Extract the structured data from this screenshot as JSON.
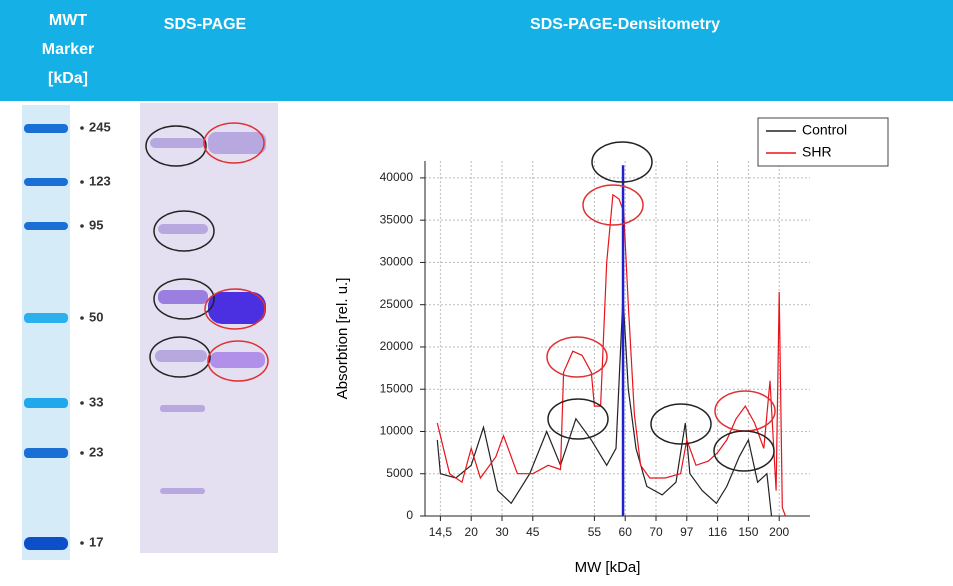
{
  "header": {
    "marker_lines": [
      "MWT",
      "Marker",
      "[kDa]"
    ],
    "gel": "SDS-PAGE",
    "densitometry": "SDS-PAGE-Densitometry"
  },
  "marker_labels": [
    "245",
    "123",
    "95",
    "50",
    "33",
    "23",
    "17"
  ],
  "chart_data": {
    "type": "line",
    "xlabel": "MW [kDa]",
    "ylabel": "Absorbtion [rel. u.]",
    "xlim": [
      -0.5,
      12
    ],
    "ylim": [
      0,
      42000
    ],
    "xticks": [
      {
        "value": 0,
        "label": "14,5"
      },
      {
        "value": 1,
        "label": "20"
      },
      {
        "value": 2,
        "label": "30"
      },
      {
        "value": 3,
        "label": "45"
      },
      {
        "value": 5,
        "label": "55"
      },
      {
        "value": 6,
        "label": "60"
      },
      {
        "value": 7,
        "label": "70"
      },
      {
        "value": 8,
        "label": "97"
      },
      {
        "value": 9,
        "label": "116"
      },
      {
        "value": 10,
        "label": "150"
      },
      {
        "value": 11,
        "label": "200"
      }
    ],
    "yticks": [
      0,
      5000,
      10000,
      15000,
      20000,
      25000,
      30000,
      35000,
      40000
    ],
    "grid": true,
    "legend": "top-right",
    "marker_line": {
      "x": 5.93,
      "ylim": [
        0,
        41500
      ],
      "color": "#2222cc"
    },
    "series": [
      {
        "name": "Control",
        "color": "#222222",
        "x": [
          -0.1,
          0,
          0.5,
          1.0,
          1.4,
          1.86,
          2.3,
          2.9,
          3.45,
          3.9,
          4.4,
          4.9,
          5.4,
          5.7,
          5.93,
          6.1,
          6.35,
          6.7,
          7.2,
          7.65,
          7.95,
          8.1,
          8.5,
          8.96,
          9.3,
          9.7,
          10.0,
          10.3,
          10.6,
          10.75
        ],
        "values": [
          9000,
          5000,
          4500,
          6000,
          10500,
          3000,
          1500,
          5000,
          10000,
          6000,
          11500,
          9000,
          6000,
          8000,
          26000,
          15000,
          8000,
          3500,
          2500,
          4000,
          11000,
          5000,
          3000,
          1500,
          3500,
          7000,
          9000,
          4000,
          5000,
          0
        ]
      },
      {
        "name": "SHR",
        "color": "#e8141c",
        "x": [
          -0.1,
          0.3,
          0.7,
          1.0,
          1.3,
          1.8,
          2.05,
          2.5,
          3.0,
          3.5,
          3.9,
          4.0,
          4.3,
          4.6,
          4.9,
          5.0,
          5.2,
          5.4,
          5.6,
          5.8,
          5.95,
          6.1,
          6.3,
          6.5,
          6.8,
          7.3,
          7.8,
          8.0,
          8.3,
          8.7,
          9.0,
          9.3,
          9.6,
          9.9,
          10.2,
          10.5,
          10.7,
          10.9,
          11.0,
          11.1,
          11.2
        ],
        "values": [
          11000,
          5000,
          4000,
          8000,
          4500,
          7000,
          9500,
          5000,
          5000,
          6000,
          5500,
          17000,
          19500,
          19000,
          17000,
          13000,
          13000,
          30000,
          38000,
          37500,
          36000,
          25000,
          12000,
          6000,
          4500,
          4500,
          5000,
          9000,
          6000,
          6500,
          7500,
          9000,
          11500,
          13000,
          11000,
          8000,
          16000,
          3000,
          26500,
          1000,
          0
        ]
      }
    ]
  }
}
